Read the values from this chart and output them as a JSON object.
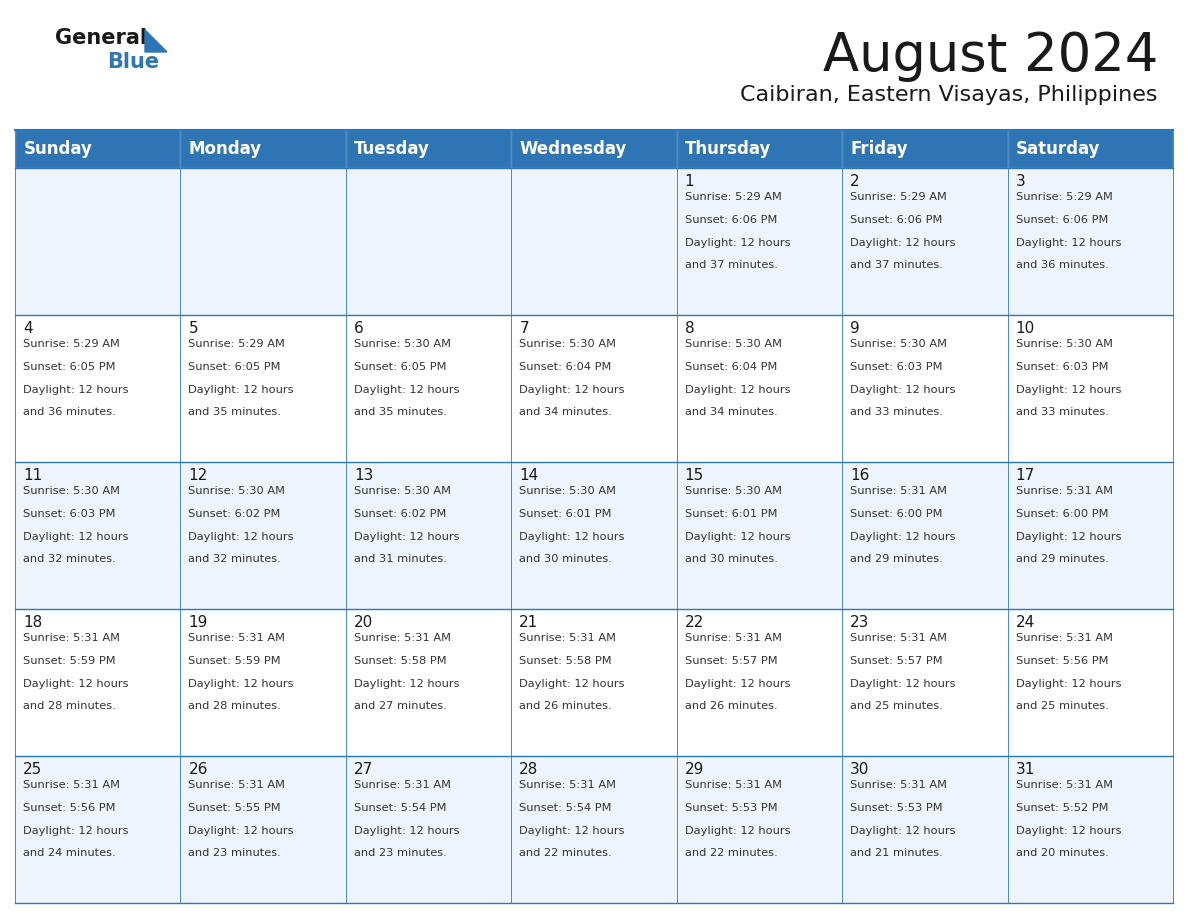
{
  "title": "August 2024",
  "subtitle": "Caibiran, Eastern Visayas, Philippines",
  "header_bg": "#2e75b6",
  "header_text": "#ffffff",
  "day_names": [
    "Sunday",
    "Monday",
    "Tuesday",
    "Wednesday",
    "Thursday",
    "Friday",
    "Saturday"
  ],
  "row_bg_odd": "#eef4fb",
  "row_bg_even": "#ffffff",
  "cell_border": "#2e75b6",
  "text_color": "#333333",
  "calendar": [
    [
      null,
      null,
      null,
      null,
      {
        "day": 1,
        "sunrise": "5:29 AM",
        "sunset": "6:06 PM",
        "daylight_line1": "12 hours",
        "daylight_line2": "and 37 minutes."
      },
      {
        "day": 2,
        "sunrise": "5:29 AM",
        "sunset": "6:06 PM",
        "daylight_line1": "12 hours",
        "daylight_line2": "and 37 minutes."
      },
      {
        "day": 3,
        "sunrise": "5:29 AM",
        "sunset": "6:06 PM",
        "daylight_line1": "12 hours",
        "daylight_line2": "and 36 minutes."
      }
    ],
    [
      {
        "day": 4,
        "sunrise": "5:29 AM",
        "sunset": "6:05 PM",
        "daylight_line1": "12 hours",
        "daylight_line2": "and 36 minutes."
      },
      {
        "day": 5,
        "sunrise": "5:29 AM",
        "sunset": "6:05 PM",
        "daylight_line1": "12 hours",
        "daylight_line2": "and 35 minutes."
      },
      {
        "day": 6,
        "sunrise": "5:30 AM",
        "sunset": "6:05 PM",
        "daylight_line1": "12 hours",
        "daylight_line2": "and 35 minutes."
      },
      {
        "day": 7,
        "sunrise": "5:30 AM",
        "sunset": "6:04 PM",
        "daylight_line1": "12 hours",
        "daylight_line2": "and 34 minutes."
      },
      {
        "day": 8,
        "sunrise": "5:30 AM",
        "sunset": "6:04 PM",
        "daylight_line1": "12 hours",
        "daylight_line2": "and 34 minutes."
      },
      {
        "day": 9,
        "sunrise": "5:30 AM",
        "sunset": "6:03 PM",
        "daylight_line1": "12 hours",
        "daylight_line2": "and 33 minutes."
      },
      {
        "day": 10,
        "sunrise": "5:30 AM",
        "sunset": "6:03 PM",
        "daylight_line1": "12 hours",
        "daylight_line2": "and 33 minutes."
      }
    ],
    [
      {
        "day": 11,
        "sunrise": "5:30 AM",
        "sunset": "6:03 PM",
        "daylight_line1": "12 hours",
        "daylight_line2": "and 32 minutes."
      },
      {
        "day": 12,
        "sunrise": "5:30 AM",
        "sunset": "6:02 PM",
        "daylight_line1": "12 hours",
        "daylight_line2": "and 32 minutes."
      },
      {
        "day": 13,
        "sunrise": "5:30 AM",
        "sunset": "6:02 PM",
        "daylight_line1": "12 hours",
        "daylight_line2": "and 31 minutes."
      },
      {
        "day": 14,
        "sunrise": "5:30 AM",
        "sunset": "6:01 PM",
        "daylight_line1": "12 hours",
        "daylight_line2": "and 30 minutes."
      },
      {
        "day": 15,
        "sunrise": "5:30 AM",
        "sunset": "6:01 PM",
        "daylight_line1": "12 hours",
        "daylight_line2": "and 30 minutes."
      },
      {
        "day": 16,
        "sunrise": "5:31 AM",
        "sunset": "6:00 PM",
        "daylight_line1": "12 hours",
        "daylight_line2": "and 29 minutes."
      },
      {
        "day": 17,
        "sunrise": "5:31 AM",
        "sunset": "6:00 PM",
        "daylight_line1": "12 hours",
        "daylight_line2": "and 29 minutes."
      }
    ],
    [
      {
        "day": 18,
        "sunrise": "5:31 AM",
        "sunset": "5:59 PM",
        "daylight_line1": "12 hours",
        "daylight_line2": "and 28 minutes."
      },
      {
        "day": 19,
        "sunrise": "5:31 AM",
        "sunset": "5:59 PM",
        "daylight_line1": "12 hours",
        "daylight_line2": "and 28 minutes."
      },
      {
        "day": 20,
        "sunrise": "5:31 AM",
        "sunset": "5:58 PM",
        "daylight_line1": "12 hours",
        "daylight_line2": "and 27 minutes."
      },
      {
        "day": 21,
        "sunrise": "5:31 AM",
        "sunset": "5:58 PM",
        "daylight_line1": "12 hours",
        "daylight_line2": "and 26 minutes."
      },
      {
        "day": 22,
        "sunrise": "5:31 AM",
        "sunset": "5:57 PM",
        "daylight_line1": "12 hours",
        "daylight_line2": "and 26 minutes."
      },
      {
        "day": 23,
        "sunrise": "5:31 AM",
        "sunset": "5:57 PM",
        "daylight_line1": "12 hours",
        "daylight_line2": "and 25 minutes."
      },
      {
        "day": 24,
        "sunrise": "5:31 AM",
        "sunset": "5:56 PM",
        "daylight_line1": "12 hours",
        "daylight_line2": "and 25 minutes."
      }
    ],
    [
      {
        "day": 25,
        "sunrise": "5:31 AM",
        "sunset": "5:56 PM",
        "daylight_line1": "12 hours",
        "daylight_line2": "and 24 minutes."
      },
      {
        "day": 26,
        "sunrise": "5:31 AM",
        "sunset": "5:55 PM",
        "daylight_line1": "12 hours",
        "daylight_line2": "and 23 minutes."
      },
      {
        "day": 27,
        "sunrise": "5:31 AM",
        "sunset": "5:54 PM",
        "daylight_line1": "12 hours",
        "daylight_line2": "and 23 minutes."
      },
      {
        "day": 28,
        "sunrise": "5:31 AM",
        "sunset": "5:54 PM",
        "daylight_line1": "12 hours",
        "daylight_line2": "and 22 minutes."
      },
      {
        "day": 29,
        "sunrise": "5:31 AM",
        "sunset": "5:53 PM",
        "daylight_line1": "12 hours",
        "daylight_line2": "and 22 minutes."
      },
      {
        "day": 30,
        "sunrise": "5:31 AM",
        "sunset": "5:53 PM",
        "daylight_line1": "12 hours",
        "daylight_line2": "and 21 minutes."
      },
      {
        "day": 31,
        "sunrise": "5:31 AM",
        "sunset": "5:52 PM",
        "daylight_line1": "12 hours",
        "daylight_line2": "and 20 minutes."
      }
    ]
  ]
}
